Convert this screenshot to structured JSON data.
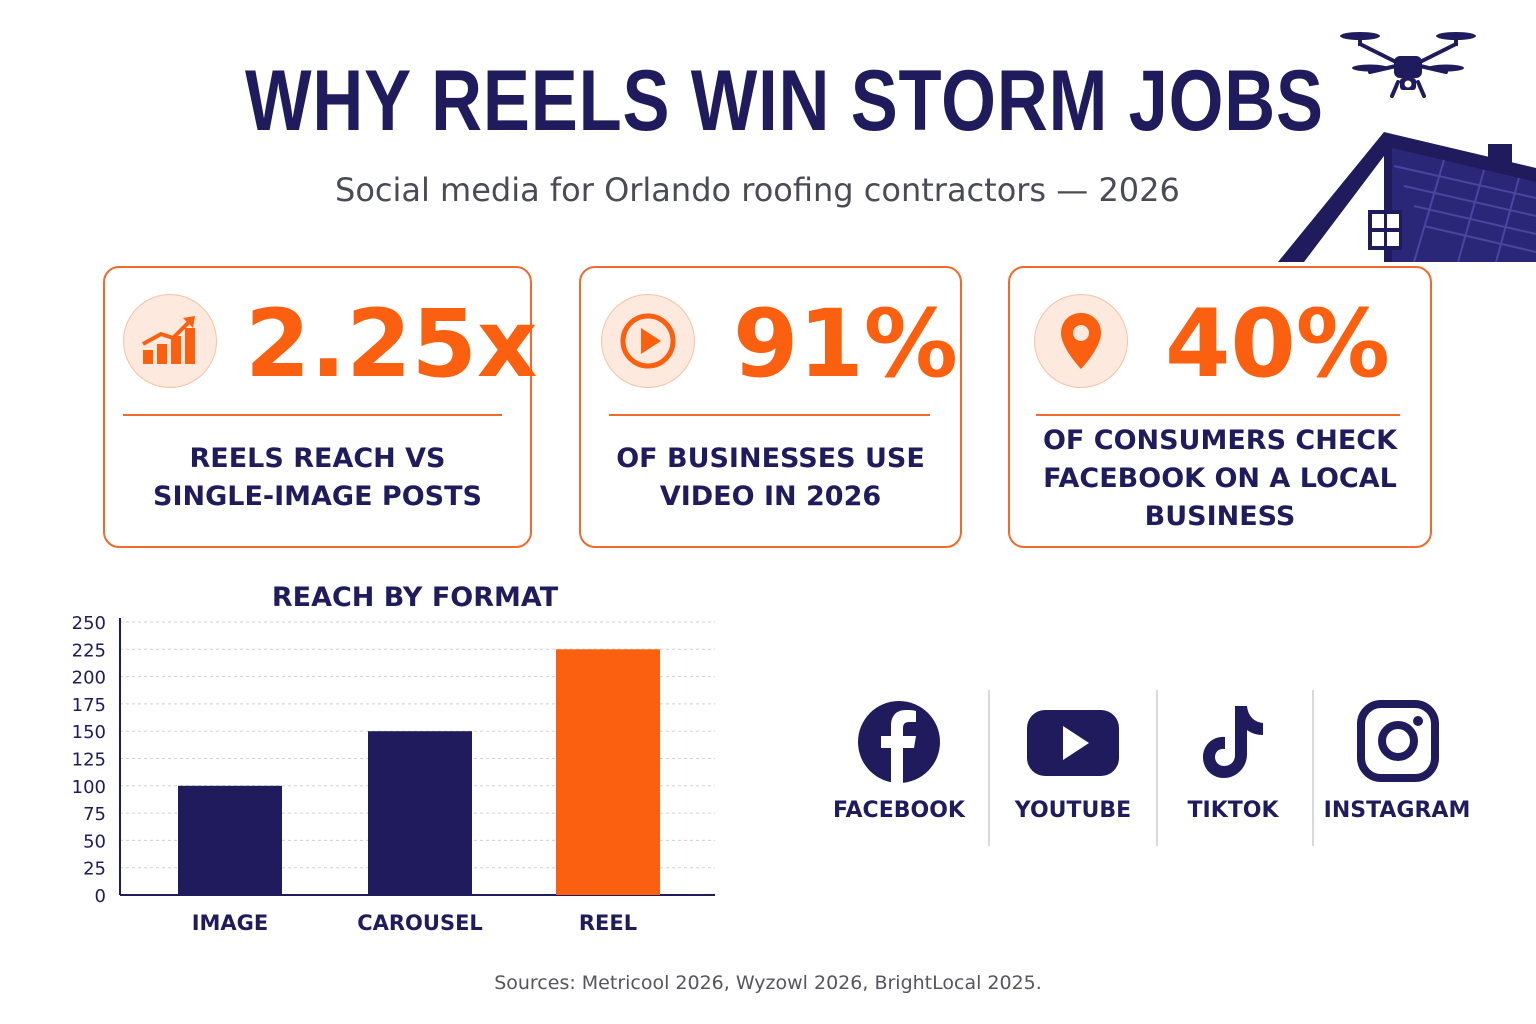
{
  "header": {
    "title": "WHY REELS WIN STORM JOBS",
    "subtitle": "Social media for Orlando roofing contractors — 2026"
  },
  "stats": [
    {
      "icon": "growth-chart-icon",
      "value": "2.25x",
      "description": "REELS REACH VS SINGLE-IMAGE POSTS"
    },
    {
      "icon": "play-icon",
      "value": "91%",
      "description": "OF BUSINESSES USE VIDEO IN 2026"
    },
    {
      "icon": "location-pin-icon",
      "value": "40%",
      "description": "OF CONSUMERS CHECK FACEBOOK ON A LOCAL BUSINESS"
    }
  ],
  "colors": {
    "navy": "#1f1b5c",
    "orange": "#fb5f10",
    "card_border": "#f06a2a"
  },
  "chart_data": {
    "type": "bar",
    "title": "REACH BY FORMAT",
    "categories": [
      "IMAGE",
      "CAROUSEL",
      "REEL"
    ],
    "values": [
      100,
      150,
      225
    ],
    "bar_colors": [
      "#1f1b5c",
      "#1f1b5c",
      "#fb5f10"
    ],
    "ylim": [
      0,
      250
    ],
    "yticks": [
      0,
      25,
      50,
      75,
      100,
      125,
      150,
      175,
      200,
      225,
      250
    ],
    "xlabel": "",
    "ylabel": "",
    "grid": true
  },
  "platforms": [
    {
      "icon": "facebook-icon",
      "label": "FACEBOOK"
    },
    {
      "icon": "youtube-icon",
      "label": "YOUTUBE"
    },
    {
      "icon": "tiktok-icon",
      "label": "TIKTOK"
    },
    {
      "icon": "instagram-icon",
      "label": "INSTAGRAM"
    }
  ],
  "footer": {
    "sources": "Sources: Metricool 2026, Wyzowl 2026,  BrightLocal 2025."
  }
}
